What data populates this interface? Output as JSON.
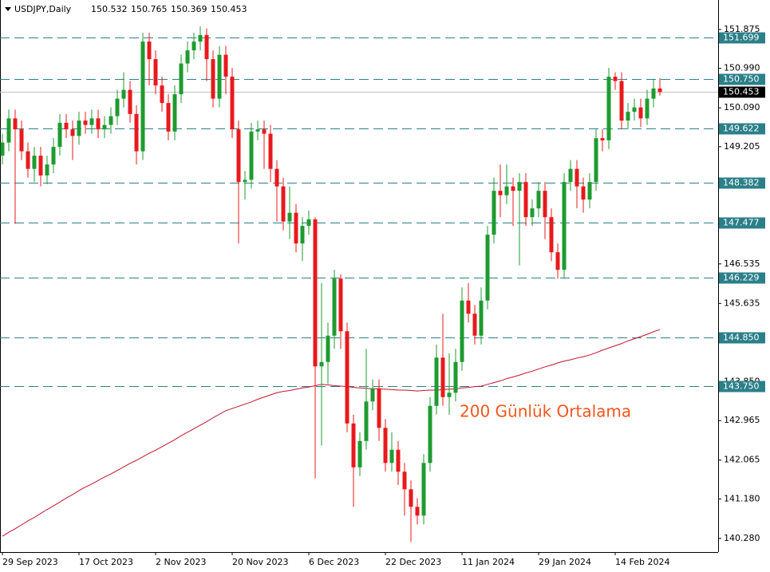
{
  "chart_data": {
    "type": "candlestick",
    "title": "USDJPY,Daily",
    "annotation": "200 Günlük Ortalama",
    "annotation_color": "#f0561c",
    "up_color": "#1e9b30",
    "down_color": "#e8191d",
    "level_color": "#2b7f89",
    "ylim": [
      139.97,
      152.547
    ],
    "yticks": [
      151.875,
      {
        "value": 150.99,
        "label": "150.990"
      },
      {
        "value": 150.09,
        "label": "150.090"
      },
      149.205,
      146.535,
      145.635,
      {
        "value": 143.85,
        "label": "143.850"
      },
      142.965,
      142.065,
      {
        "value": 141.18,
        "label": "141.180"
      },
      {
        "value": 140.28,
        "label": "140.280"
      }
    ],
    "levels": [
      151.699,
      {
        "value": 150.75,
        "label": "150.750"
      },
      149.622,
      148.382,
      147.477,
      146.229,
      {
        "value": 144.85,
        "label": "144.850"
      },
      {
        "value": 143.75,
        "label": "143.750"
      }
    ],
    "categories": [
      "29 Sep 2023",
      null,
      null,
      null,
      null,
      null,
      null,
      null,
      null,
      null,
      null,
      null,
      "17 Oct 2023",
      null,
      null,
      null,
      null,
      null,
      null,
      null,
      null,
      null,
      null,
      null,
      "2 Nov 2023",
      null,
      null,
      null,
      null,
      null,
      null,
      null,
      null,
      null,
      null,
      null,
      "20 Nov 2023",
      null,
      null,
      null,
      null,
      null,
      null,
      null,
      null,
      null,
      null,
      null,
      "6 Dec 2023",
      null,
      null,
      null,
      null,
      null,
      null,
      null,
      null,
      null,
      null,
      null,
      "22 Dec 2023",
      null,
      null,
      null,
      null,
      null,
      null,
      null,
      null,
      null,
      null,
      null,
      "11 Jan 2024",
      null,
      null,
      null,
      null,
      null,
      null,
      null,
      null,
      null,
      null,
      null,
      "29 Jan 2024",
      null,
      null,
      null,
      null,
      null,
      null,
      null,
      null,
      null,
      null,
      null,
      "14 Feb 2024",
      null,
      null,
      null,
      null,
      null,
      null,
      null
    ],
    "open": [
      149.0,
      149.3,
      149.85,
      149.6,
      149.1,
      148.7,
      149.0,
      148.55,
      148.8,
      149.2,
      149.75,
      149.6,
      149.45,
      149.8,
      149.7,
      149.85,
      149.6,
      149.7,
      149.9,
      150.3,
      150.5,
      149.95,
      149.1,
      151.6,
      151.2,
      150.6,
      150.2,
      149.55,
      150.4,
      151.1,
      151.4,
      151.6,
      151.75,
      151.2,
      150.3,
      151.3,
      150.8,
      149.6,
      148.4,
      148.45,
      149.55,
      149.6,
      149.5,
      148.7,
      148.3,
      147.5,
      147.7,
      147.0,
      147.4,
      147.55,
      144.2,
      144.3,
      144.9,
      146.2,
      145.0,
      142.9,
      141.9,
      142.5,
      143.4,
      143.7,
      142.8,
      142.0,
      142.3,
      141.8,
      141.4,
      141.0,
      140.8,
      142.0,
      143.3,
      144.4,
      143.5,
      143.6,
      144.3,
      145.7,
      145.4,
      144.9,
      145.7,
      147.2,
      148.2,
      148.1,
      148.3,
      148.2,
      148.4,
      147.6,
      147.8,
      148.2,
      147.6,
      146.8,
      146.4,
      148.4,
      148.7,
      148.3,
      148.0,
      148.4,
      149.4,
      149.35,
      150.8,
      150.7,
      149.8,
      150.0,
      150.1,
      149.85,
      150.3,
      150.532
    ],
    "high": [
      149.5,
      150.05,
      150.05,
      149.8,
      149.3,
      149.2,
      149.2,
      149.0,
      149.4,
      149.95,
      149.95,
      149.8,
      150.0,
      150.0,
      150.05,
      150.05,
      149.9,
      150.1,
      150.5,
      150.9,
      150.7,
      150.15,
      151.8,
      151.8,
      151.4,
      150.8,
      150.4,
      150.6,
      151.3,
      151.6,
      151.8,
      151.95,
      151.9,
      151.4,
      151.5,
      151.5,
      151.0,
      149.8,
      148.65,
      149.75,
      149.8,
      149.8,
      149.7,
      148.9,
      148.5,
      148.3,
      147.9,
      147.6,
      147.75,
      147.6,
      146.1,
      145.2,
      146.4,
      146.3,
      145.2,
      143.1,
      142.7,
      144.6,
      143.9,
      143.9,
      143.0,
      142.7,
      142.5,
      142.0,
      141.6,
      141.2,
      142.2,
      143.5,
      144.7,
      145.4,
      144.5,
      144.6,
      146.0,
      146.1,
      145.6,
      146.0,
      147.4,
      148.5,
      148.8,
      148.8,
      148.5,
      148.6,
      148.6,
      148.0,
      148.4,
      148.4,
      147.8,
      147.0,
      148.6,
      148.9,
      148.9,
      148.5,
      148.6,
      149.6,
      149.6,
      151.0,
      150.9,
      150.9,
      150.2,
      150.3,
      150.3,
      150.5,
      150.75,
      150.765
    ],
    "low": [
      148.8,
      149.1,
      147.45,
      148.9,
      148.5,
      148.4,
      148.3,
      148.35,
      148.6,
      149.0,
      149.4,
      148.9,
      149.25,
      149.5,
      149.5,
      149.4,
      149.4,
      149.5,
      149.7,
      150.1,
      149.75,
      148.8,
      148.9,
      150.6,
      150.4,
      150.0,
      149.35,
      149.35,
      150.2,
      150.9,
      151.2,
      151.4,
      150.7,
      150.1,
      150.1,
      150.4,
      149.4,
      147.0,
      148.0,
      148.25,
      149.35,
      148.7,
      148.4,
      147.5,
      147.3,
      147.1,
      146.8,
      146.6,
      147.2,
      141.65,
      142.4,
      143.8,
      144.6,
      144.6,
      142.7,
      141.0,
      141.7,
      142.3,
      143.2,
      142.5,
      141.8,
      141.8,
      141.5,
      140.8,
      140.2,
      140.6,
      140.6,
      141.8,
      143.1,
      143.3,
      143.1,
      143.4,
      144.1,
      145.2,
      144.7,
      144.7,
      145.5,
      147.0,
      147.6,
      147.9,
      147.4,
      146.5,
      147.4,
      147.4,
      147.6,
      147.1,
      146.6,
      146.2,
      146.2,
      148.2,
      147.8,
      147.7,
      147.8,
      148.2,
      149.1,
      149.15,
      150.5,
      149.6,
      149.6,
      149.8,
      149.65,
      149.7,
      150.1,
      150.369
    ],
    "close": [
      149.3,
      149.85,
      149.6,
      149.1,
      148.7,
      149.0,
      148.55,
      148.8,
      149.2,
      149.75,
      149.6,
      149.45,
      149.8,
      149.7,
      149.85,
      149.6,
      149.7,
      149.9,
      150.3,
      150.5,
      149.95,
      149.1,
      151.6,
      151.2,
      150.6,
      150.2,
      149.55,
      150.4,
      151.1,
      151.4,
      151.6,
      151.75,
      151.2,
      150.3,
      151.3,
      150.8,
      149.6,
      148.4,
      148.45,
      149.55,
      149.6,
      149.5,
      148.7,
      148.3,
      147.5,
      147.7,
      147.0,
      147.4,
      147.55,
      144.2,
      144.3,
      144.9,
      146.2,
      145.0,
      142.9,
      141.9,
      142.5,
      143.4,
      143.7,
      142.8,
      142.0,
      142.3,
      141.8,
      141.4,
      141.0,
      140.8,
      142.0,
      143.3,
      144.4,
      143.5,
      143.6,
      144.3,
      145.7,
      145.4,
      144.9,
      145.7,
      147.2,
      148.2,
      148.1,
      148.3,
      148.2,
      148.4,
      147.6,
      147.8,
      148.2,
      147.6,
      146.8,
      146.4,
      148.4,
      148.7,
      148.3,
      148.0,
      148.4,
      149.4,
      149.35,
      150.8,
      150.7,
      149.8,
      150.0,
      150.1,
      149.85,
      150.3,
      150.532,
      150.453
    ],
    "ma": {
      "color": "#c0142c",
      "values": [
        140.33,
        140.42,
        140.5,
        140.59,
        140.68,
        140.76,
        140.85,
        140.94,
        141.02,
        141.11,
        141.2,
        141.28,
        141.37,
        141.45,
        141.52,
        141.6,
        141.68,
        141.75,
        141.83,
        141.91,
        141.99,
        142.06,
        142.14,
        142.22,
        142.29,
        142.37,
        142.45,
        142.53,
        142.62,
        142.7,
        142.78,
        142.86,
        142.94,
        143.03,
        143.11,
        143.19,
        143.24,
        143.29,
        143.34,
        143.39,
        143.45,
        143.5,
        143.55,
        143.6,
        143.63,
        143.65,
        143.68,
        143.71,
        143.73,
        143.76,
        143.79,
        143.78,
        143.76,
        143.75,
        143.74,
        143.72,
        143.71,
        143.7,
        143.69,
        143.69,
        143.68,
        143.67,
        143.66,
        143.66,
        143.65,
        143.64,
        143.65,
        143.66,
        143.66,
        143.67,
        143.68,
        143.69,
        143.71,
        143.72,
        143.74,
        143.75,
        143.79,
        143.83,
        143.87,
        143.92,
        143.96,
        144.0,
        144.05,
        144.09,
        144.14,
        144.19,
        144.23,
        144.28,
        144.32,
        144.35,
        144.39,
        144.42,
        144.46,
        144.51,
        144.57,
        144.62,
        144.67,
        144.72,
        144.78,
        144.83,
        144.88,
        144.93,
        144.99,
        145.04
      ]
    }
  }
}
